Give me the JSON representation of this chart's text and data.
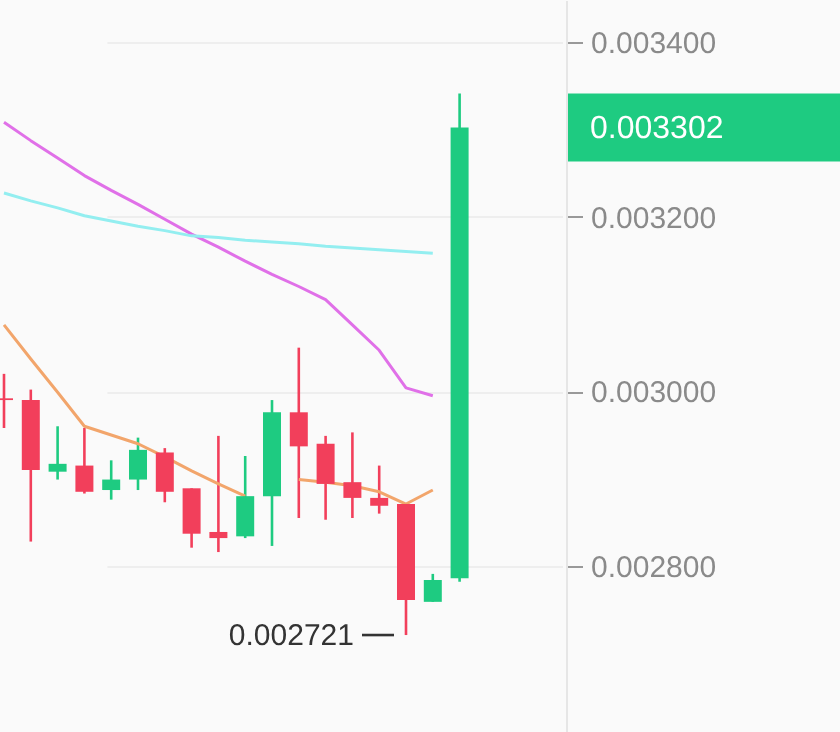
{
  "chart_data": {
    "type": "candlestick",
    "categories": [
      null,
      null,
      null,
      null,
      null,
      null,
      null,
      null,
      null,
      null,
      null,
      null,
      null,
      null,
      null,
      null,
      null,
      null
    ],
    "ohlc": [
      [
        0.002992,
        0.00302,
        0.002958,
        0.00299
      ],
      [
        0.00299,
        0.003002,
        0.002828,
        0.00291
      ],
      [
        0.002908,
        0.00296,
        0.002899,
        0.002917
      ],
      [
        0.002915,
        0.002958,
        0.002883,
        0.002885
      ],
      [
        0.002887,
        0.002921,
        0.002876,
        0.002899
      ],
      [
        0.002899,
        0.002947,
        0.002887,
        0.002933
      ],
      [
        0.00293,
        0.002935,
        0.002873,
        0.002885
      ],
      [
        0.002889,
        0.002889,
        0.002821,
        0.002837
      ],
      [
        0.002839,
        0.002949,
        0.002816,
        0.002832
      ],
      [
        0.002834,
        0.002926,
        0.002832,
        0.00288
      ],
      [
        0.00288,
        0.00299,
        0.002823,
        0.002976
      ],
      [
        0.002976,
        0.00305,
        0.002855,
        0.002937
      ],
      [
        0.00294,
        0.002949,
        0.002853,
        0.002894
      ],
      [
        0.002896,
        0.002953,
        0.002855,
        0.002878
      ],
      [
        0.002878,
        0.002915,
        0.00286,
        0.002869
      ],
      [
        0.002871,
        0.002871,
        0.002721,
        0.002761
      ],
      [
        0.002759,
        0.002791,
        0.002759,
        0.002784
      ],
      [
        0.002786,
        0.003341,
        0.002782,
        0.003302
      ]
    ],
    "colors": [
      "#f23f5b",
      "#f23f5b",
      "#1ecb81",
      "#f23f5b",
      "#1ecb81",
      "#1ecb81",
      "#f23f5b",
      "#f23f5b",
      "#f23f5b",
      "#1ecb81",
      "#1ecb81",
      "#f23f5b",
      "#f23f5b",
      "#f23f5b",
      "#f23f5b",
      "#f23f5b",
      "#1ecb81",
      "#1ecb81"
    ],
    "series": [
      {
        "type": "line",
        "color": "#f2a56b",
        "values": [
          0.003076,
          0.003037,
          0.002999,
          0.00296,
          0.00295,
          0.00294,
          0.002925,
          0.002909,
          0.002894,
          0.00288,
          null,
          0.002899,
          0.002896,
          0.002892,
          0.002885,
          0.002871,
          0.002887,
          null
        ]
      },
      {
        "type": "line",
        "color": "#e070e8",
        "values": [
          0.003308,
          0.003287,
          0.003267,
          0.003247,
          0.00323,
          0.003214,
          0.003197,
          0.00318,
          0.003165,
          0.003149,
          0.003134,
          0.00312,
          0.003105,
          0.003076,
          0.003047,
          0.003004,
          0.002995,
          null
        ]
      },
      {
        "type": "line",
        "color": "#93eef0",
        "values": [
          0.003227,
          0.003218,
          0.00321,
          0.003201,
          0.003195,
          0.003189,
          0.003184,
          0.003178,
          0.003176,
          0.003173,
          0.003171,
          0.003169,
          0.003166,
          0.003164,
          0.003162,
          0.00316,
          0.003158,
          null
        ]
      }
    ],
    "ylim": [
      0.00261,
      0.003448
    ],
    "yticks": [
      {
        "value": 0.0028,
        "label": "0.002800"
      },
      {
        "value": 0.003,
        "label": "0.003000"
      },
      {
        "value": 0.0032,
        "label": "0.003200"
      },
      {
        "value": 0.0034,
        "label": "0.003400"
      }
    ],
    "tick_labels": "y",
    "grid": "y",
    "annotations": [
      "0.002721",
      "0.003302"
    ]
  }
}
